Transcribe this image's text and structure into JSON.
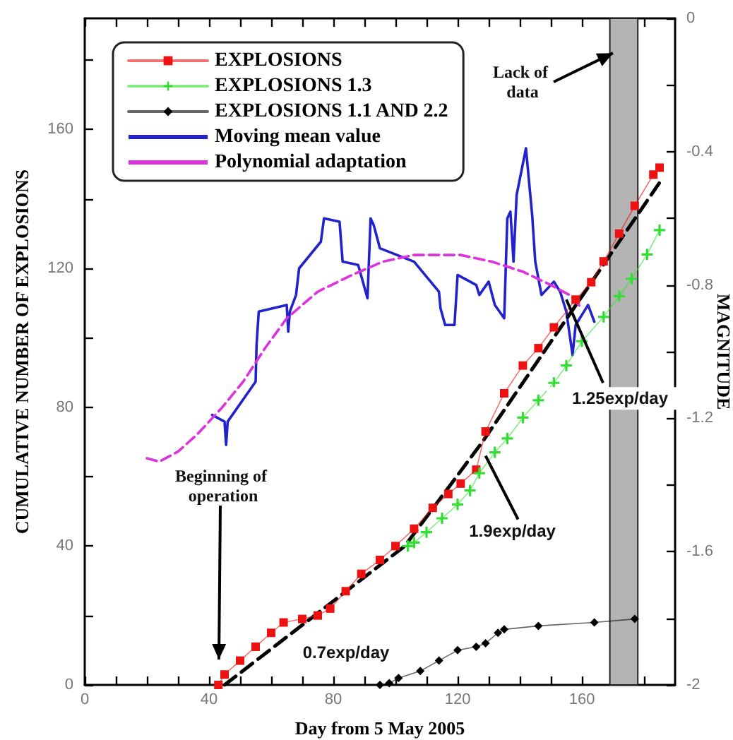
{
  "chart_data": {
    "type": "line",
    "xlabel": "Day from 5 May 2005",
    "ylabel": "CUMULATIVE NUMBER OF EXPLOSIONS",
    "y2label": "MAGNITUDE",
    "xlim": [
      0,
      190
    ],
    "xticks": [
      0,
      {
        "value": 10,
        "label": null
      },
      {
        "value": 20,
        "label": null
      },
      {
        "value": 30,
        "label": null
      },
      40,
      {
        "value": 50,
        "label": null
      },
      {
        "value": 60,
        "label": null
      },
      {
        "value": 70,
        "label": null
      },
      80,
      {
        "value": 90,
        "label": null
      },
      {
        "value": 100,
        "label": null
      },
      {
        "value": 110,
        "label": null
      },
      120,
      {
        "value": 130,
        "label": null
      },
      {
        "value": 140,
        "label": null
      },
      {
        "value": 150,
        "label": null
      },
      160,
      {
        "value": 170,
        "label": null
      },
      {
        "value": 180,
        "label": null
      }
    ],
    "ylim": [
      0,
      192
    ],
    "yticks": [
      0,
      {
        "value": 20,
        "label": null
      },
      40,
      {
        "value": 60,
        "label": null
      },
      80,
      {
        "value": 100,
        "label": null
      },
      120,
      {
        "value": 140,
        "label": null
      },
      160,
      {
        "value": 180,
        "label": null
      }
    ],
    "y2lim": [
      -2,
      0
    ],
    "y2ticks": [
      -2,
      {
        "value": -1.8,
        "label": null
      },
      -1.6,
      {
        "value": -1.4,
        "label": null
      },
      -1.2,
      {
        "value": -1,
        "label": null
      },
      -0.8,
      {
        "value": -0.6,
        "label": null
      },
      -0.4,
      {
        "value": -0.2,
        "label": null
      },
      0
    ],
    "legend": "top left",
    "bands": [
      {
        "axis": "x",
        "from": 169,
        "to": 178,
        "color": "#b4b4b4"
      }
    ],
    "annotations": [
      {
        "text": "Lack of data",
        "x": 170,
        "y": 182
      },
      "Beginning of operation",
      "0.7exp/day",
      {
        "text": "1.9exp/day",
        "x": 129,
        "y": 66
      },
      {
        "text": "1.25exp/day",
        "x": 155,
        "y": 111
      }
    ],
    "series": [
      {
        "name": "EXPLOSIONS",
        "color": "#ee1111",
        "marker": "square",
        "x": [
          43,
          45,
          50,
          55,
          60,
          64,
          70,
          75,
          79,
          84,
          89,
          95,
          100,
          106,
          112,
          117,
          121,
          126,
          129,
          135,
          141,
          146,
          151,
          158,
          163,
          167,
          172,
          177,
          183,
          185
        ],
        "values": [
          0,
          3,
          7,
          11,
          15,
          18,
          19,
          20,
          22,
          27,
          32,
          36,
          40,
          45,
          51,
          55,
          58,
          62,
          73,
          84,
          92,
          97,
          103,
          111,
          116,
          122,
          130,
          138,
          147,
          149
        ]
      },
      {
        "name": "EXPLOSIONS 1.3",
        "color": "#33dd33",
        "marker": "cross",
        "x": [
          104,
          106,
          110,
          115,
          120,
          124,
          127,
          132,
          136,
          141,
          146,
          151,
          155,
          160,
          167,
          172,
          176,
          181,
          185
        ],
        "values": [
          40,
          41,
          44,
          48,
          52,
          56,
          61,
          67,
          71,
          77,
          82,
          87,
          92,
          99,
          106,
          112,
          117,
          124,
          131
        ]
      },
      {
        "name": "EXPLOSIONS 1.1 AND 2.2",
        "color": "#000000",
        "marker": "diamond",
        "x": [
          95,
          98,
          101,
          108,
          114,
          120,
          126,
          129,
          133,
          135,
          146,
          164,
          177
        ],
        "values": [
          0,
          0.5,
          2,
          4,
          7,
          10,
          11,
          12,
          15,
          16,
          17,
          18,
          19
        ]
      },
      {
        "name": "Moving mean value",
        "color": "#2222cc",
        "marker": "none",
        "axis": "y2",
        "x": [
          41,
          45,
          45.5,
          46,
          55,
          55.3,
          56,
          65,
          65.5,
          66,
          68,
          69,
          76,
          77,
          82,
          83,
          88,
          91,
          92,
          93,
          95,
          106,
          114,
          114.5,
          116,
          119,
          120,
          126,
          127,
          130,
          132,
          135,
          136,
          137,
          138,
          139,
          142,
          144,
          145,
          147,
          151,
          153,
          155,
          157,
          158,
          162,
          164
        ],
        "values": [
          -1.19,
          -1.21,
          -1.28,
          -1.21,
          -1.09,
          -0.98,
          -0.88,
          -0.86,
          -0.94,
          -0.88,
          -0.83,
          -0.75,
          -0.67,
          -0.6,
          -0.61,
          -0.73,
          -0.74,
          -0.84,
          -0.6,
          -0.62,
          -0.69,
          -0.73,
          -0.82,
          -0.87,
          -0.92,
          -0.92,
          -0.77,
          -0.8,
          -0.83,
          -0.79,
          -0.86,
          -0.9,
          -0.6,
          -0.58,
          -0.73,
          -0.53,
          -0.39,
          -0.59,
          -0.73,
          -0.83,
          -0.79,
          -0.82,
          -0.88,
          -1.01,
          -0.92,
          -0.86,
          -0.91
        ]
      },
      {
        "name": "Polynomial adaptation",
        "color": "#dd33dd",
        "marker": "none",
        "line_style": "dashed",
        "axis": "y2",
        "x": [
          20,
          24,
          30,
          36,
          44,
          51,
          58,
          65,
          75,
          86,
          96,
          106,
          121,
          131,
          141,
          150,
          156,
          160
        ],
        "values": [
          -1.32,
          -1.33,
          -1.3,
          -1.25,
          -1.17,
          -1.09,
          -0.99,
          -0.9,
          -0.82,
          -0.77,
          -0.73,
          -0.71,
          -0.71,
          -0.73,
          -0.76,
          -0.8,
          -0.83,
          -0.87
        ]
      },
      {
        "color": "#000000",
        "marker": "none",
        "line_style": "dashed",
        "x": [
          45,
          103,
          128,
          186
        ],
        "values": [
          0,
          40,
          70,
          146
        ]
      }
    ]
  }
}
